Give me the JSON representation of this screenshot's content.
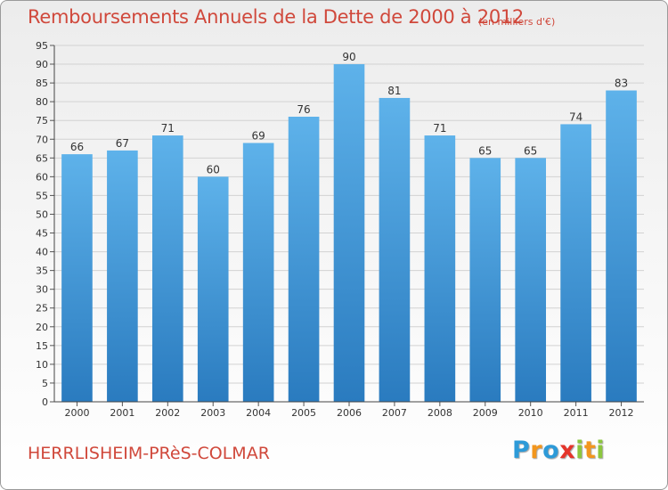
{
  "header": {
    "title": "Remboursements Annuels de la Dette de 2000 à 2012",
    "unit": "(en milliers d'€)"
  },
  "footer": {
    "city": "HERRLISHEIM-PRèS-COLMAR",
    "logo_letters": [
      "P",
      "r",
      "o",
      "x",
      "i",
      "t",
      "i"
    ],
    "logo_colors": [
      "#2d9ad8",
      "#f2961e",
      "#2d9ad8",
      "#e5352b",
      "#8cc63f",
      "#f2961e",
      "#8cc63f"
    ]
  },
  "chart_data": {
    "type": "bar",
    "categories": [
      "2000",
      "2001",
      "2002",
      "2003",
      "2004",
      "2005",
      "2006",
      "2007",
      "2008",
      "2009",
      "2010",
      "2011",
      "2012"
    ],
    "values": [
      66,
      67,
      71,
      60,
      69,
      76,
      90,
      81,
      71,
      65,
      65,
      74,
      83
    ],
    "value_labels": [
      "66",
      "67",
      "71",
      "60",
      "69",
      "76",
      "90",
      "81",
      "71",
      "65",
      "65",
      "74",
      "83"
    ],
    "title": "Remboursements Annuels de la Dette de 2000 à 2012",
    "xlabel": "",
    "ylabel": "",
    "ylim": [
      0,
      95
    ],
    "yticks": [
      0,
      5,
      10,
      15,
      20,
      25,
      30,
      35,
      40,
      45,
      50,
      55,
      60,
      65,
      70,
      75,
      80,
      85,
      90,
      95
    ],
    "grid": true,
    "legend": "none",
    "colors": {
      "bar_top": "#5eb2ea",
      "bar_bottom": "#2a7bbf",
      "title": "#d0483b"
    }
  }
}
